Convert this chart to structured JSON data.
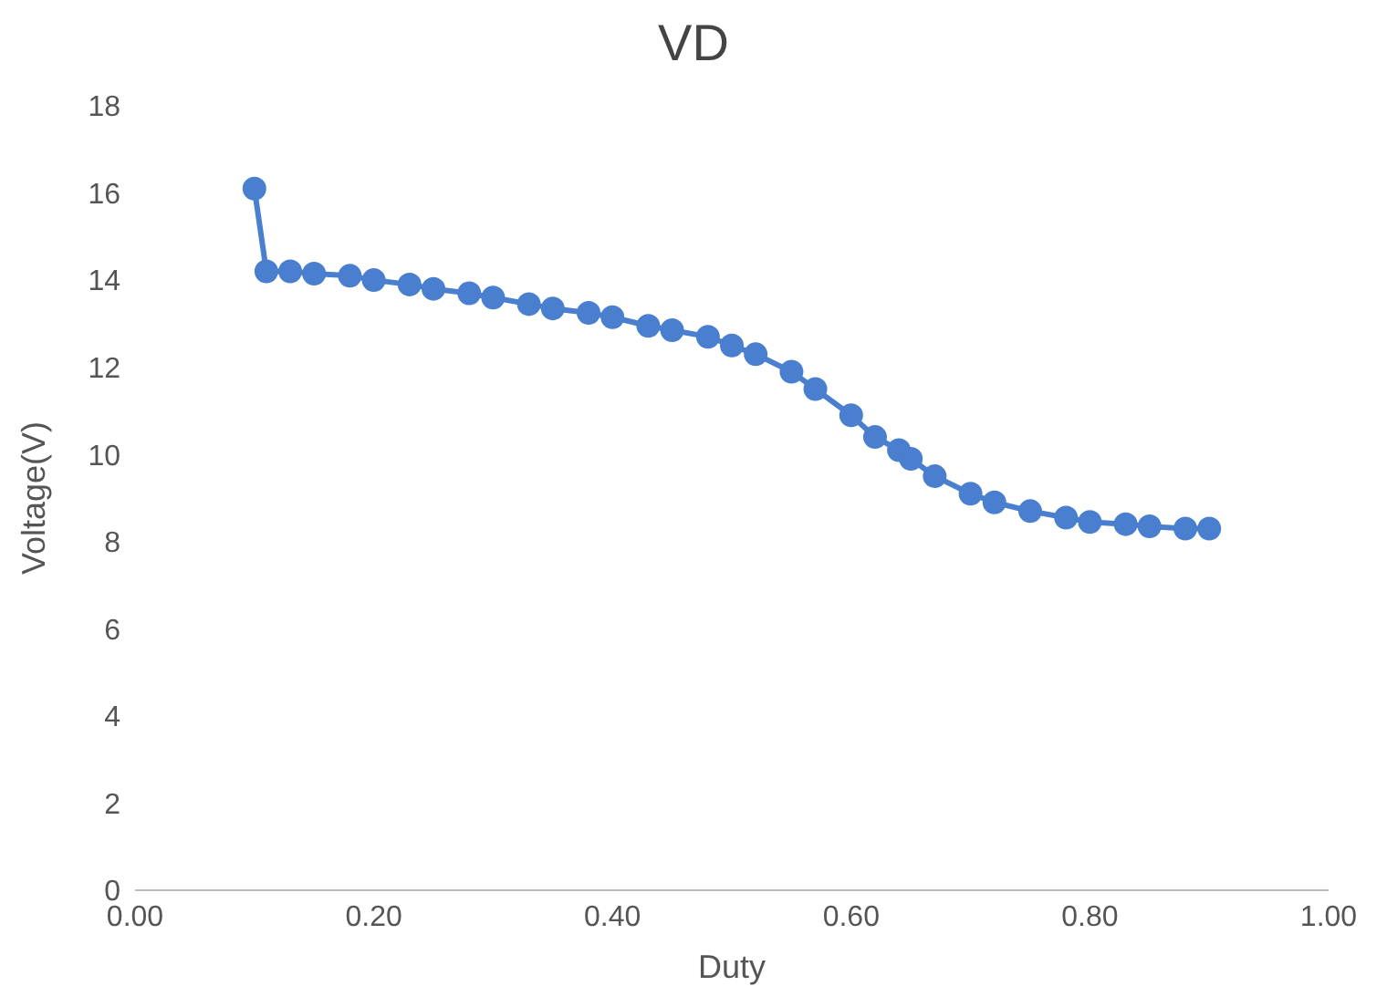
{
  "chart_data": {
    "type": "line",
    "title": "VD",
    "xlabel": "Duty",
    "ylabel": "Voltage(V)",
    "series": [
      {
        "color": "#4a7fcf",
        "x": [
          0.1,
          0.11,
          0.13,
          0.15,
          0.18,
          0.2,
          0.23,
          0.25,
          0.28,
          0.3,
          0.33,
          0.35,
          0.38,
          0.4,
          0.43,
          0.45,
          0.48,
          0.5,
          0.52,
          0.55,
          0.57,
          0.6,
          0.62,
          0.64,
          0.65,
          0.67,
          0.7,
          0.72,
          0.75,
          0.78,
          0.8,
          0.83,
          0.85,
          0.88,
          0.9
        ],
        "values": [
          16.1,
          14.2,
          14.2,
          14.15,
          14.1,
          14.0,
          13.9,
          13.8,
          13.7,
          13.6,
          13.45,
          13.35,
          13.25,
          13.15,
          12.95,
          12.85,
          12.7,
          12.5,
          12.3,
          11.9,
          11.5,
          10.9,
          10.4,
          10.1,
          9.9,
          9.5,
          9.1,
          8.9,
          8.7,
          8.55,
          8.45,
          8.4,
          8.35,
          8.3,
          8.3
        ]
      }
    ],
    "xlim": [
      0,
      1
    ],
    "xticks": [
      {
        "value": 0,
        "label": "0.00"
      },
      {
        "value": 0.2,
        "label": "0.20"
      },
      {
        "value": 0.4,
        "label": "0.40"
      },
      {
        "value": 0.6,
        "label": "0.60"
      },
      {
        "value": 0.8,
        "label": "0.80"
      },
      {
        "value": 1,
        "label": "1.00"
      }
    ],
    "ylim": [
      0,
      18
    ],
    "yticks": [
      0,
      2,
      4,
      6,
      8,
      10,
      12,
      14,
      16,
      18
    ],
    "grid": false,
    "marker": "circle",
    "line_style": "solid"
  }
}
